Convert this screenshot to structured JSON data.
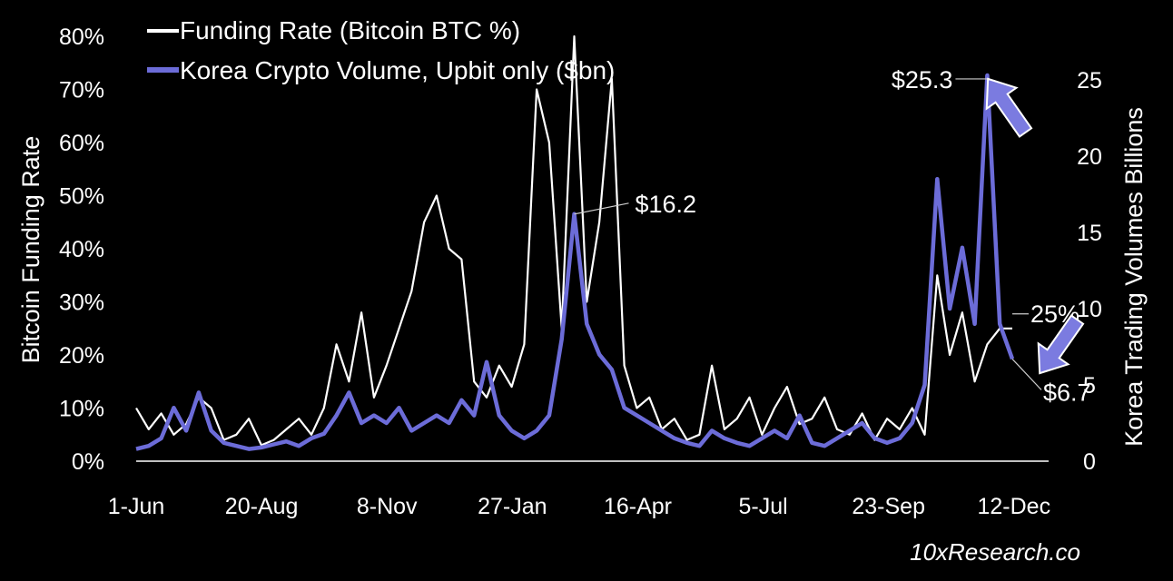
{
  "chart_data": {
    "type": "line",
    "legend": {
      "placement": "top-left"
    },
    "grid": false,
    "background": "#000000",
    "x_tick_labels": [
      "1-Jun",
      "20-Aug",
      "8-Nov",
      "27-Jan",
      "16-Apr",
      "5-Jul",
      "23-Sep",
      "12-Dec"
    ],
    "y_left": {
      "label": "Bitcoin Funding Rate",
      "range": [
        0,
        80
      ],
      "ticks": [
        0,
        10,
        20,
        30,
        40,
        50,
        60,
        70,
        80
      ],
      "tick_labels": [
        "0%",
        "10%",
        "20%",
        "30%",
        "40%",
        "50%",
        "60%",
        "70%",
        "80%"
      ]
    },
    "y_right": {
      "label": "Korea Trading  Volumes Billions",
      "range": [
        0,
        25
      ],
      "ticks": [
        0,
        5,
        10,
        15,
        20,
        25
      ],
      "tick_labels": [
        "0",
        "5",
        "10",
        "15",
        "20",
        "25"
      ]
    },
    "series": [
      {
        "name": "Funding Rate (Bitcoin BTC %)",
        "axis": "left",
        "color": "#ffffff",
        "x": [
          "1-Jun",
          "10-Jun",
          "20-Jun",
          "1-Jul",
          "10-Jul",
          "20-Jul",
          "1-Aug",
          "10-Aug",
          "20-Aug",
          "1-Sep",
          "10-Sep",
          "20-Sep",
          "1-Oct",
          "10-Oct",
          "20-Oct",
          "1-Nov",
          "8-Nov",
          "15-Nov",
          "22-Nov",
          "29-Nov",
          "6-Dec",
          "13-Dec",
          "20-Dec",
          "27-Dec",
          "3-Jan",
          "10-Jan",
          "17-Jan",
          "27-Jan",
          "3-Feb",
          "10-Feb",
          "17-Feb",
          "24-Feb",
          "1-Mar",
          "5-Mar",
          "9-Mar",
          "13-Mar",
          "17-Mar",
          "21-Mar",
          "25-Mar",
          "1-Apr",
          "8-Apr",
          "16-Apr",
          "23-Apr",
          "1-May",
          "10-May",
          "20-May",
          "1-Jun",
          "10-Jun",
          "20-Jun",
          "1-Jul",
          "5-Jul",
          "15-Jul",
          "25-Jul",
          "5-Aug",
          "15-Aug",
          "25-Aug",
          "5-Sep",
          "15-Sep",
          "23-Sep",
          "1-Oct",
          "10-Oct",
          "20-Oct",
          "1-Nov",
          "8-Nov",
          "15-Nov",
          "22-Nov",
          "29-Nov",
          "6-Dec",
          "12-Dec",
          "15-Dec",
          "18-Dec"
        ],
        "y": [
          10,
          6,
          9,
          5,
          7,
          12,
          10,
          4,
          5,
          8,
          3,
          4,
          6,
          8,
          5,
          10,
          22,
          15,
          28,
          12,
          18,
          25,
          32,
          45,
          50,
          40,
          38,
          15,
          12,
          18,
          14,
          22,
          70,
          60,
          25,
          80,
          30,
          45,
          72,
          18,
          10,
          12,
          6,
          8,
          4,
          5,
          18,
          6,
          8,
          12,
          5,
          10,
          14,
          7,
          8,
          12,
          6,
          5,
          9,
          4,
          8,
          6,
          10,
          5,
          35,
          20,
          28,
          15,
          22,
          25,
          25
        ]
      },
      {
        "name": "Korea Crypto Volume, Upbit only ($bn)",
        "axis": "right",
        "color": "#6c6cd8",
        "x": [
          "1-Jun",
          "10-Jun",
          "20-Jun",
          "1-Jul",
          "10-Jul",
          "20-Jul",
          "1-Aug",
          "10-Aug",
          "20-Aug",
          "1-Sep",
          "10-Sep",
          "20-Sep",
          "1-Oct",
          "10-Oct",
          "20-Oct",
          "1-Nov",
          "8-Nov",
          "15-Nov",
          "22-Nov",
          "29-Nov",
          "6-Dec",
          "13-Dec",
          "20-Dec",
          "27-Dec",
          "3-Jan",
          "10-Jan",
          "17-Jan",
          "27-Jan",
          "3-Feb",
          "10-Feb",
          "17-Feb",
          "24-Feb",
          "1-Mar",
          "5-Mar",
          "9-Mar",
          "13-Mar",
          "17-Mar",
          "21-Mar",
          "25-Mar",
          "1-Apr",
          "8-Apr",
          "16-Apr",
          "23-Apr",
          "1-May",
          "10-May",
          "20-May",
          "1-Jun",
          "10-Jun",
          "20-Jun",
          "1-Jul",
          "5-Jul",
          "15-Jul",
          "25-Jul",
          "5-Aug",
          "15-Aug",
          "25-Aug",
          "5-Sep",
          "15-Sep",
          "23-Sep",
          "1-Oct",
          "10-Oct",
          "20-Oct",
          "1-Nov",
          "8-Nov",
          "15-Nov",
          "22-Nov",
          "29-Nov",
          "6-Dec",
          "12-Dec",
          "15-Dec",
          "18-Dec"
        ],
        "y": [
          0.8,
          1.0,
          1.5,
          3.5,
          2.0,
          4.5,
          2.0,
          1.2,
          1.0,
          0.8,
          0.9,
          1.1,
          1.3,
          1.0,
          1.5,
          1.8,
          3.0,
          4.5,
          2.5,
          3.0,
          2.5,
          3.5,
          2.0,
          2.5,
          3.0,
          2.5,
          4.0,
          3.0,
          6.5,
          3.0,
          2.0,
          1.5,
          2.0,
          3.0,
          8.0,
          16.2,
          9.0,
          7.0,
          6.0,
          3.5,
          3.0,
          2.5,
          2.0,
          1.5,
          1.2,
          1.0,
          2.0,
          1.5,
          1.2,
          1.0,
          1.5,
          2.0,
          1.5,
          3.0,
          1.2,
          1.0,
          1.5,
          2.0,
          2.5,
          1.5,
          1.2,
          1.5,
          2.5,
          5.0,
          18.5,
          10.0,
          14.0,
          9.0,
          25.3,
          9.0,
          6.7
        ]
      }
    ],
    "annotations": [
      {
        "text": "$25.3",
        "series": "Korea Crypto Volume, Upbit only ($bn)",
        "x": "12-Dec",
        "y": 25.3
      },
      {
        "text": "$16.2",
        "series": "Korea Crypto Volume, Upbit only ($bn)",
        "x": "13-Mar",
        "y": 16.2
      },
      {
        "text": "25%",
        "series": "Funding Rate (Bitcoin BTC %)",
        "x": "18-Dec",
        "y": 25
      },
      {
        "text": "$6.7",
        "series": "Korea Crypto Volume, Upbit only ($bn)",
        "x": "18-Dec",
        "y": 6.7
      }
    ],
    "arrows": [
      {
        "direction": "up",
        "color": "#7b7be0"
      },
      {
        "direction": "down",
        "color": "#7b7be0"
      }
    ]
  },
  "watermark": "10xResearch.co"
}
